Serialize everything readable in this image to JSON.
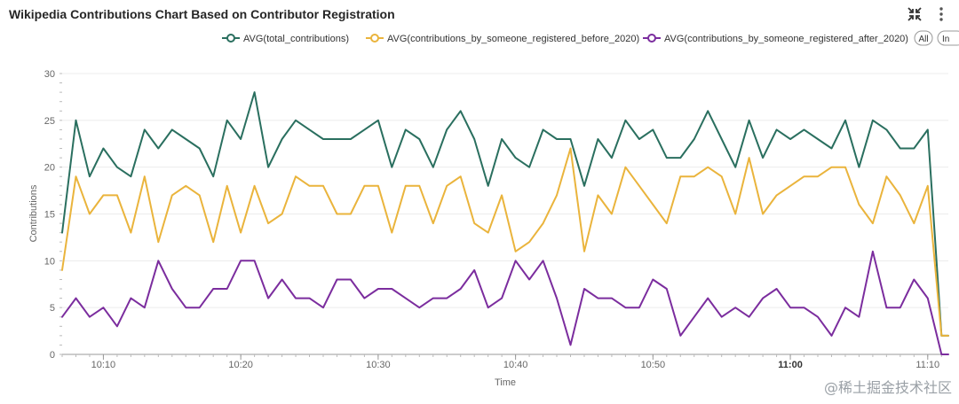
{
  "header": {
    "title": "Wikipedia Contributions Chart Based on Contributor Registration",
    "icons": [
      "collapse-icon",
      "more-vertical-icon"
    ]
  },
  "legend": {
    "all_label": "All",
    "in_label": "In"
  },
  "watermark": "@稀土掘金技术社区",
  "colors": {
    "series1": "#2a6f5f",
    "series2": "#eab43c",
    "series3": "#7b2d9e",
    "grid": "#ececec",
    "axis": "#999999",
    "tick_text": "#666666"
  },
  "chart_data": {
    "type": "line",
    "title": "Wikipedia Contributions Chart Based on Contributor Registration",
    "xlabel": "Time",
    "ylabel": "Contributions",
    "ylim": [
      0,
      30
    ],
    "y_ticks": [
      0,
      5,
      10,
      15,
      20,
      25,
      30
    ],
    "x_range_minutes": [
      7,
      71.5
    ],
    "x_tick_labels": [
      {
        "label": "10:10",
        "minute": 10,
        "bold": false
      },
      {
        "label": "10:20",
        "minute": 20,
        "bold": false
      },
      {
        "label": "10:30",
        "minute": 30,
        "bold": false
      },
      {
        "label": "10:40",
        "minute": 40,
        "bold": false
      },
      {
        "label": "10:50",
        "minute": 50,
        "bold": false
      },
      {
        "label": "11:00",
        "minute": 60,
        "bold": true
      },
      {
        "label": "11:10",
        "minute": 70,
        "bold": false
      }
    ],
    "x_minutes": [
      7,
      8,
      9,
      10,
      11,
      12,
      13,
      14,
      15,
      16,
      17,
      18,
      19,
      20,
      21,
      22,
      23,
      24,
      25,
      26,
      27,
      28,
      29,
      30,
      31,
      32,
      33,
      34,
      35,
      36,
      37,
      38,
      39,
      40,
      41,
      42,
      43,
      44,
      45,
      46,
      47,
      48,
      49,
      50,
      51,
      52,
      53,
      54,
      55,
      56,
      57,
      58,
      59,
      60,
      61,
      62,
      63,
      64,
      65,
      66,
      67,
      68,
      69,
      70,
      71,
      72
    ],
    "series": [
      {
        "name": "AVG(total_contributions)",
        "color": "#2a6f5f",
        "values": [
          13,
          25,
          19,
          22,
          20,
          19,
          24,
          22,
          24,
          23,
          22,
          19,
          25,
          23,
          28,
          20,
          23,
          25,
          24,
          23,
          23,
          23,
          24,
          25,
          20,
          24,
          23,
          20,
          24,
          26,
          23,
          18,
          23,
          21,
          20,
          24,
          23,
          23,
          18,
          23,
          21,
          25,
          23,
          24,
          21,
          21,
          23,
          26,
          23,
          20,
          25,
          21,
          24,
          23,
          24,
          23,
          22,
          25,
          20,
          25,
          24,
          22,
          22,
          24,
          2,
          2
        ]
      },
      {
        "name": "AVG(contributions_by_someone_registered_before_2020)",
        "color": "#eab43c",
        "values": [
          9,
          19,
          15,
          17,
          17,
          13,
          19,
          12,
          17,
          18,
          17,
          12,
          18,
          13,
          18,
          14,
          15,
          19,
          18,
          18,
          15,
          15,
          18,
          18,
          13,
          18,
          18,
          14,
          18,
          19,
          14,
          13,
          17,
          11,
          12,
          14,
          17,
          22,
          11,
          17,
          15,
          20,
          18,
          16,
          14,
          19,
          19,
          20,
          19,
          15,
          21,
          15,
          17,
          18,
          19,
          19,
          20,
          20,
          16,
          14,
          19,
          17,
          14,
          18,
          2,
          2
        ]
      },
      {
        "name": "AVG(contributions_by_someone_registered_after_2020)",
        "color": "#7b2d9e",
        "values": [
          4,
          6,
          4,
          5,
          3,
          6,
          5,
          10,
          7,
          5,
          5,
          7,
          7,
          10,
          10,
          6,
          8,
          6,
          6,
          5,
          8,
          8,
          6,
          7,
          7,
          6,
          5,
          6,
          6,
          7,
          9,
          5,
          6,
          10,
          8,
          10,
          6,
          1,
          7,
          6,
          6,
          5,
          5,
          8,
          7,
          2,
          4,
          6,
          4,
          5,
          4,
          6,
          7,
          5,
          5,
          4,
          2,
          5,
          4,
          11,
          5,
          5,
          8,
          6,
          0,
          0
        ]
      }
    ],
    "legend_position": "top-right"
  }
}
